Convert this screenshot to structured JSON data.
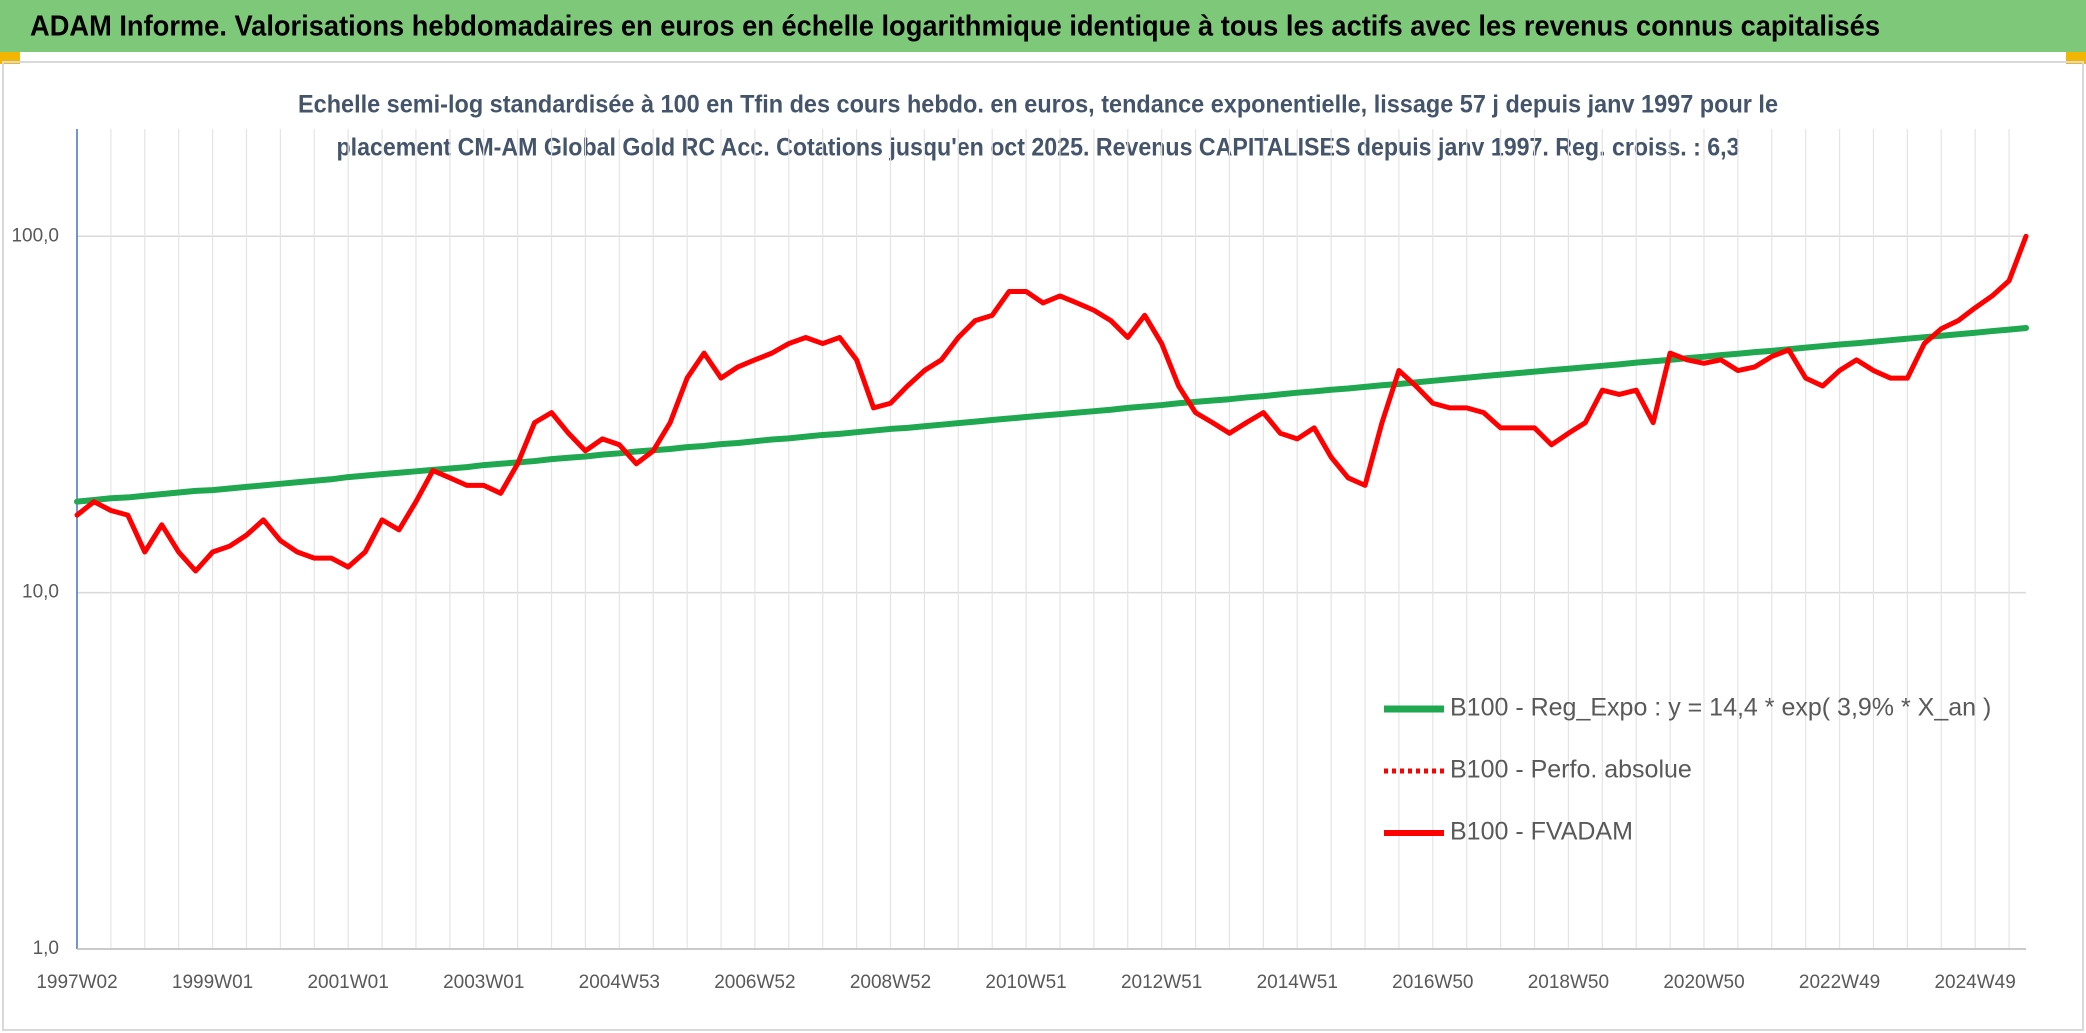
{
  "chart_data": {
    "type": "line",
    "title": "ADAM Informe. Valorisations hebdomadaires en euros en échelle logarithmique identique à tous les actifs avec les revenus connus capitalisés",
    "subtitle_lines": [
      "Echelle semi-log standardisée à 100 en Tfin des cours hebdo. en euros, tendance exponentielle, lissage 57 j depuis janv 1997 pour le",
      "placement CM-AM Global Gold RC Acc. Cotations jusqu'en oct 2025. Revenus CAPITALISES depuis janv 1997. Reg. croiss. : 6,3"
    ],
    "categories": [
      "1997W02",
      null,
      null,
      null,
      null,
      null,
      null,
      null,
      "1999W01",
      null,
      null,
      null,
      null,
      null,
      null,
      null,
      "2001W01",
      null,
      null,
      null,
      null,
      null,
      null,
      null,
      "2003W01",
      null,
      null,
      null,
      null,
      null,
      null,
      null,
      "2004W53",
      null,
      null,
      null,
      null,
      null,
      null,
      null,
      "2006W52",
      null,
      null,
      null,
      null,
      null,
      null,
      null,
      "2008W52",
      null,
      null,
      null,
      null,
      null,
      null,
      null,
      "2010W51",
      null,
      null,
      null,
      null,
      null,
      null,
      null,
      "2012W51",
      null,
      null,
      null,
      null,
      null,
      null,
      null,
      "2014W51",
      null,
      null,
      null,
      null,
      null,
      null,
      null,
      "2016W50",
      null,
      null,
      null,
      null,
      null,
      null,
      null,
      "2018W50",
      null,
      null,
      null,
      null,
      null,
      null,
      null,
      "2020W50",
      null,
      null,
      null,
      null,
      null,
      null,
      null,
      "2022W49",
      null,
      null,
      null,
      null,
      null,
      null,
      null,
      "2024W49",
      null,
      null,
      null
    ],
    "series": [
      {
        "name": "B100 - Reg_Expo : y = 14,4 * exp( 3,9% *  X_an )",
        "color": "#1fa84f",
        "line_style": "solid",
        "width": 6,
        "values": [
          18.0,
          18.2,
          18.4,
          18.5,
          18.7,
          18.9,
          19.1,
          19.3,
          19.4,
          19.6,
          19.8,
          20.0,
          20.2,
          20.4,
          20.6,
          20.8,
          21.1,
          21.3,
          21.5,
          21.7,
          21.9,
          22.1,
          22.3,
          22.5,
          22.8,
          23.0,
          23.2,
          23.4,
          23.7,
          23.9,
          24.1,
          24.4,
          24.6,
          24.9,
          25.1,
          25.3,
          25.6,
          25.8,
          26.1,
          26.3,
          26.6,
          26.9,
          27.1,
          27.4,
          27.7,
          27.9,
          28.2,
          28.5,
          28.8,
          29.0,
          29.3,
          29.6,
          29.9,
          30.2,
          30.5,
          30.8,
          31.1,
          31.4,
          31.7,
          32.0,
          32.3,
          32.6,
          33.0,
          33.3,
          33.6,
          34.0,
          34.3,
          34.6,
          34.9,
          35.3,
          35.6,
          36.0,
          36.4,
          36.7,
          37.1,
          37.4,
          37.8,
          38.2,
          38.5,
          38.9,
          39.3,
          39.7,
          40.1,
          40.5,
          40.9,
          41.3,
          41.7,
          42.1,
          42.5,
          42.9,
          43.3,
          43.7,
          44.2,
          44.6,
          45.0,
          45.5,
          45.9,
          46.4,
          46.8,
          47.3,
          47.7,
          48.2,
          48.7,
          49.2,
          49.7,
          50.1,
          50.6,
          51.1,
          51.6,
          52.1,
          52.6,
          53.1,
          53.6,
          54.2,
          54.7,
          55.3
        ]
      },
      {
        "name": "B100 - Perfo. absolue",
        "color": "#ff0000",
        "line_style": "dotted",
        "width": 4,
        "values": [
          null,
          null,
          null,
          null,
          null,
          null,
          null,
          null,
          null,
          null,
          null,
          null,
          null,
          null,
          null,
          null,
          null,
          null,
          null,
          null,
          null,
          null,
          null,
          null,
          null,
          null,
          null,
          null,
          null,
          null,
          null,
          null,
          null,
          null,
          null,
          null,
          null,
          null,
          null,
          null,
          null,
          null,
          null,
          null,
          null,
          null,
          null,
          null,
          null,
          null,
          null,
          null,
          null,
          null,
          null,
          null,
          null,
          null,
          null,
          null,
          null,
          null,
          null,
          null,
          null,
          null,
          null,
          null,
          null,
          null,
          null,
          null,
          null,
          null,
          null,
          null,
          null,
          null,
          null,
          null,
          null,
          null,
          null,
          null,
          null,
          null,
          null,
          null,
          null,
          null,
          null,
          null,
          null,
          null,
          null,
          null,
          null,
          null,
          null,
          null,
          null,
          null,
          null,
          null,
          null,
          null,
          null,
          null,
          null,
          null,
          null,
          null,
          null,
          null,
          null,
          null
        ]
      },
      {
        "name": "B100 - FVADAM",
        "color": "#ff0000",
        "line_style": "solid",
        "width": 5,
        "values": [
          16.5,
          18,
          17,
          16.5,
          13,
          15.5,
          13,
          11.5,
          13,
          13.5,
          14.5,
          16,
          14,
          13,
          12.5,
          12.5,
          11.8,
          13,
          16,
          15,
          18,
          22,
          21,
          20,
          20,
          19,
          23,
          30,
          32,
          28,
          25,
          27,
          26,
          23,
          25,
          30,
          40,
          47,
          40,
          43,
          45,
          47,
          50,
          52,
          50,
          52,
          45,
          33,
          34,
          38,
          42,
          45,
          52,
          58,
          60,
          70,
          70,
          65,
          68,
          65,
          62,
          58,
          52,
          60,
          50,
          38,
          32,
          30,
          28,
          30,
          32,
          28,
          27,
          29,
          24,
          21,
          20,
          30,
          42,
          38,
          34,
          33,
          33,
          32,
          29,
          29,
          29,
          26,
          28,
          30,
          37,
          36,
          37,
          30,
          47,
          45,
          44,
          45,
          42,
          43,
          46,
          48,
          40,
          38,
          42,
          45,
          42,
          40,
          40,
          50,
          55,
          58,
          63,
          68,
          75,
          100
        ]
      }
    ],
    "log_scale": true,
    "ylim": [
      1,
      200
    ],
    "yticks": [
      {
        "value": 1,
        "label": "1,0"
      },
      {
        "value": 10,
        "label": "10,0"
      },
      {
        "value": 100,
        "label": "100,0"
      }
    ],
    "grid": true,
    "legend_position": "right"
  }
}
